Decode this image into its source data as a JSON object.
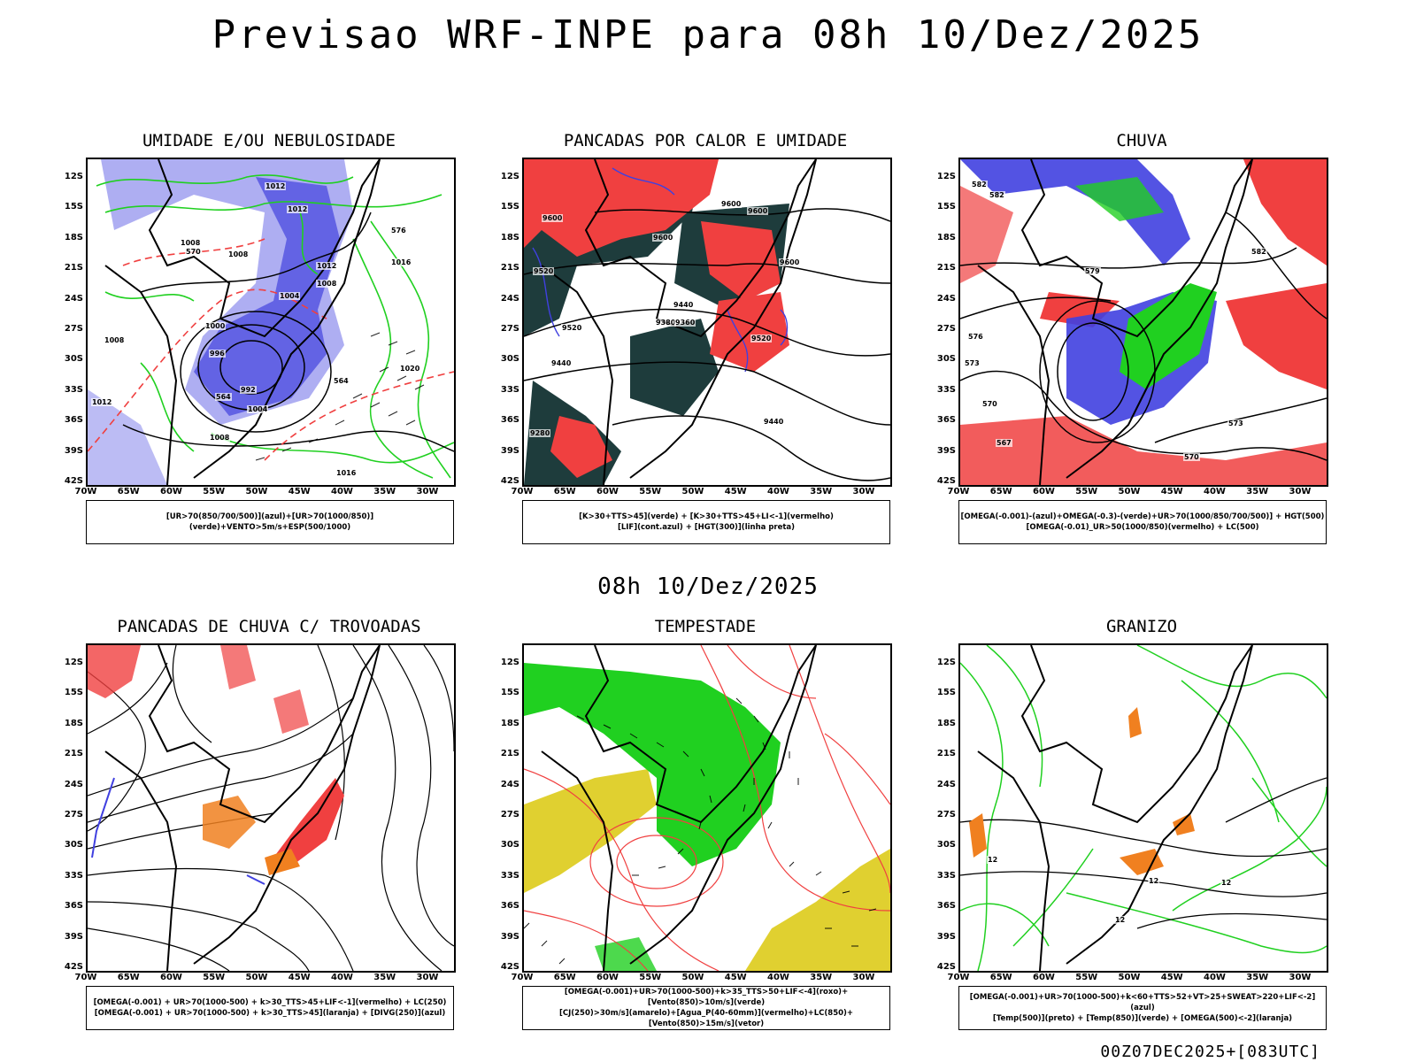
{
  "title": "Previsao WRF-INPE  para 08h 10/Dez/2025",
  "mid_title": "08h 10/Dez/2025",
  "footer": "00Z07DEC2025+[083UTC]",
  "lat_labels": [
    "12S",
    "15S",
    "18S",
    "21S",
    "24S",
    "27S",
    "30S",
    "33S",
    "36S",
    "39S",
    "42S"
  ],
  "lon_labels": [
    "70W",
    "65W",
    "60W",
    "55W",
    "50W",
    "45W",
    "40W",
    "35W",
    "30W"
  ],
  "colors": {
    "blue": "#4040e0",
    "light_blue": "#a0a0f0",
    "green": "#20d020",
    "red": "#f04040",
    "dark": "#1e3c3c",
    "yellow": "#e0d030",
    "orange": "#f08020"
  },
  "panels": [
    {
      "title": "UMIDADE E/OU NEBULOSIDADE",
      "legend": [
        "[UR>70(850/700/500)](azul)+[UR>70(1000/850)](verde)+VENTO>5m/s+ESP(500/1000)"
      ],
      "isolines": [
        "1012",
        "1012",
        "1008",
        "1008",
        "1012",
        "1016",
        "1008",
        "1004",
        "1000",
        "996",
        "992",
        "1004",
        "1008",
        "1020",
        "1016",
        "1012",
        "1008",
        "570",
        "564",
        "576",
        "564"
      ]
    },
    {
      "title": "PANCADAS POR CALOR E UMIDADE",
      "legend": [
        "[K>30+TTS>45](verde) + [K>30+TTS>45+LI<-1](vermelho)",
        "[LIF](cont.azul) + [HGT(300)](linha preta)"
      ],
      "isolines": [
        "9600",
        "9600",
        "9600",
        "9600",
        "9600",
        "9520",
        "9520",
        "9440",
        "9440",
        "9380",
        "9360",
        "9440",
        "9520",
        "9280"
      ]
    },
    {
      "title": "CHUVA",
      "legend": [
        "[OMEGA(-0.001)-(azul)+OMEGA(-0.3)-(verde)+UR>70(1000/850/700/500)] + HGT(500)",
        "[OMEGA(-0.01)_UR>50(1000/850)(vermelho) + LC(500)"
      ],
      "isolines": [
        "582",
        "582",
        "579",
        "576",
        "573",
        "570",
        "567",
        "570",
        "573",
        "582"
      ]
    },
    {
      "title": "PANCADAS DE CHUVA C/ TROVOADAS",
      "legend": [
        "[OMEGA(-0.001) + UR>70(1000-500) + k>30_TTS>45+LIF<-1](vermelho) + LC(250)",
        "[OMEGA(-0.001) + UR>70(1000-500) + k>30_TTS>45](laranja) + [DIVG(250)](azul)"
      ],
      "isolines": []
    },
    {
      "title": "TEMPESTADE",
      "legend": [
        "[OMEGA(-0.001)+UR>70(1000-500)+k>35_TTS>50+LIF<-4](roxo)+[Vento(850)>10m/s](verde)",
        "[CJ(250)>30m/s](amarelo)+[Agua_P(40-60mm)](vermelho)+LC(850)+[Vento(850)>15m/s](vetor)"
      ],
      "isolines": []
    },
    {
      "title": "GRANIZO",
      "legend": [
        "[OMEGA(-0.001)+UR>70(1000-500)+k<60+TTS>52+VT>25+SWEAT>220+LIF<-2](azul)",
        "[Temp(500)](preto) + [Temp(850)](verde) + [OMEGA(500)<-2](laranja)"
      ],
      "isolines": [
        "12",
        "12",
        "12",
        "12"
      ]
    }
  ]
}
